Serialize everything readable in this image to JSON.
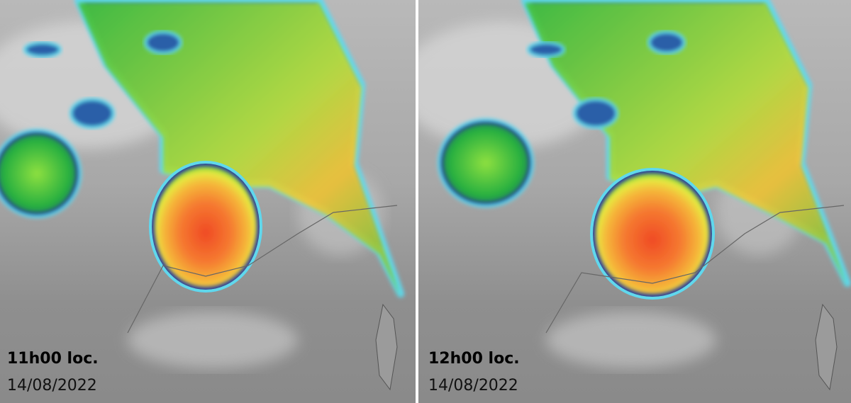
{
  "panels": [
    {
      "time": "11h00 loc.",
      "date": "14/08/2022"
    },
    {
      "time": "12h00 loc.",
      "date": "14/08/2022"
    }
  ]
}
